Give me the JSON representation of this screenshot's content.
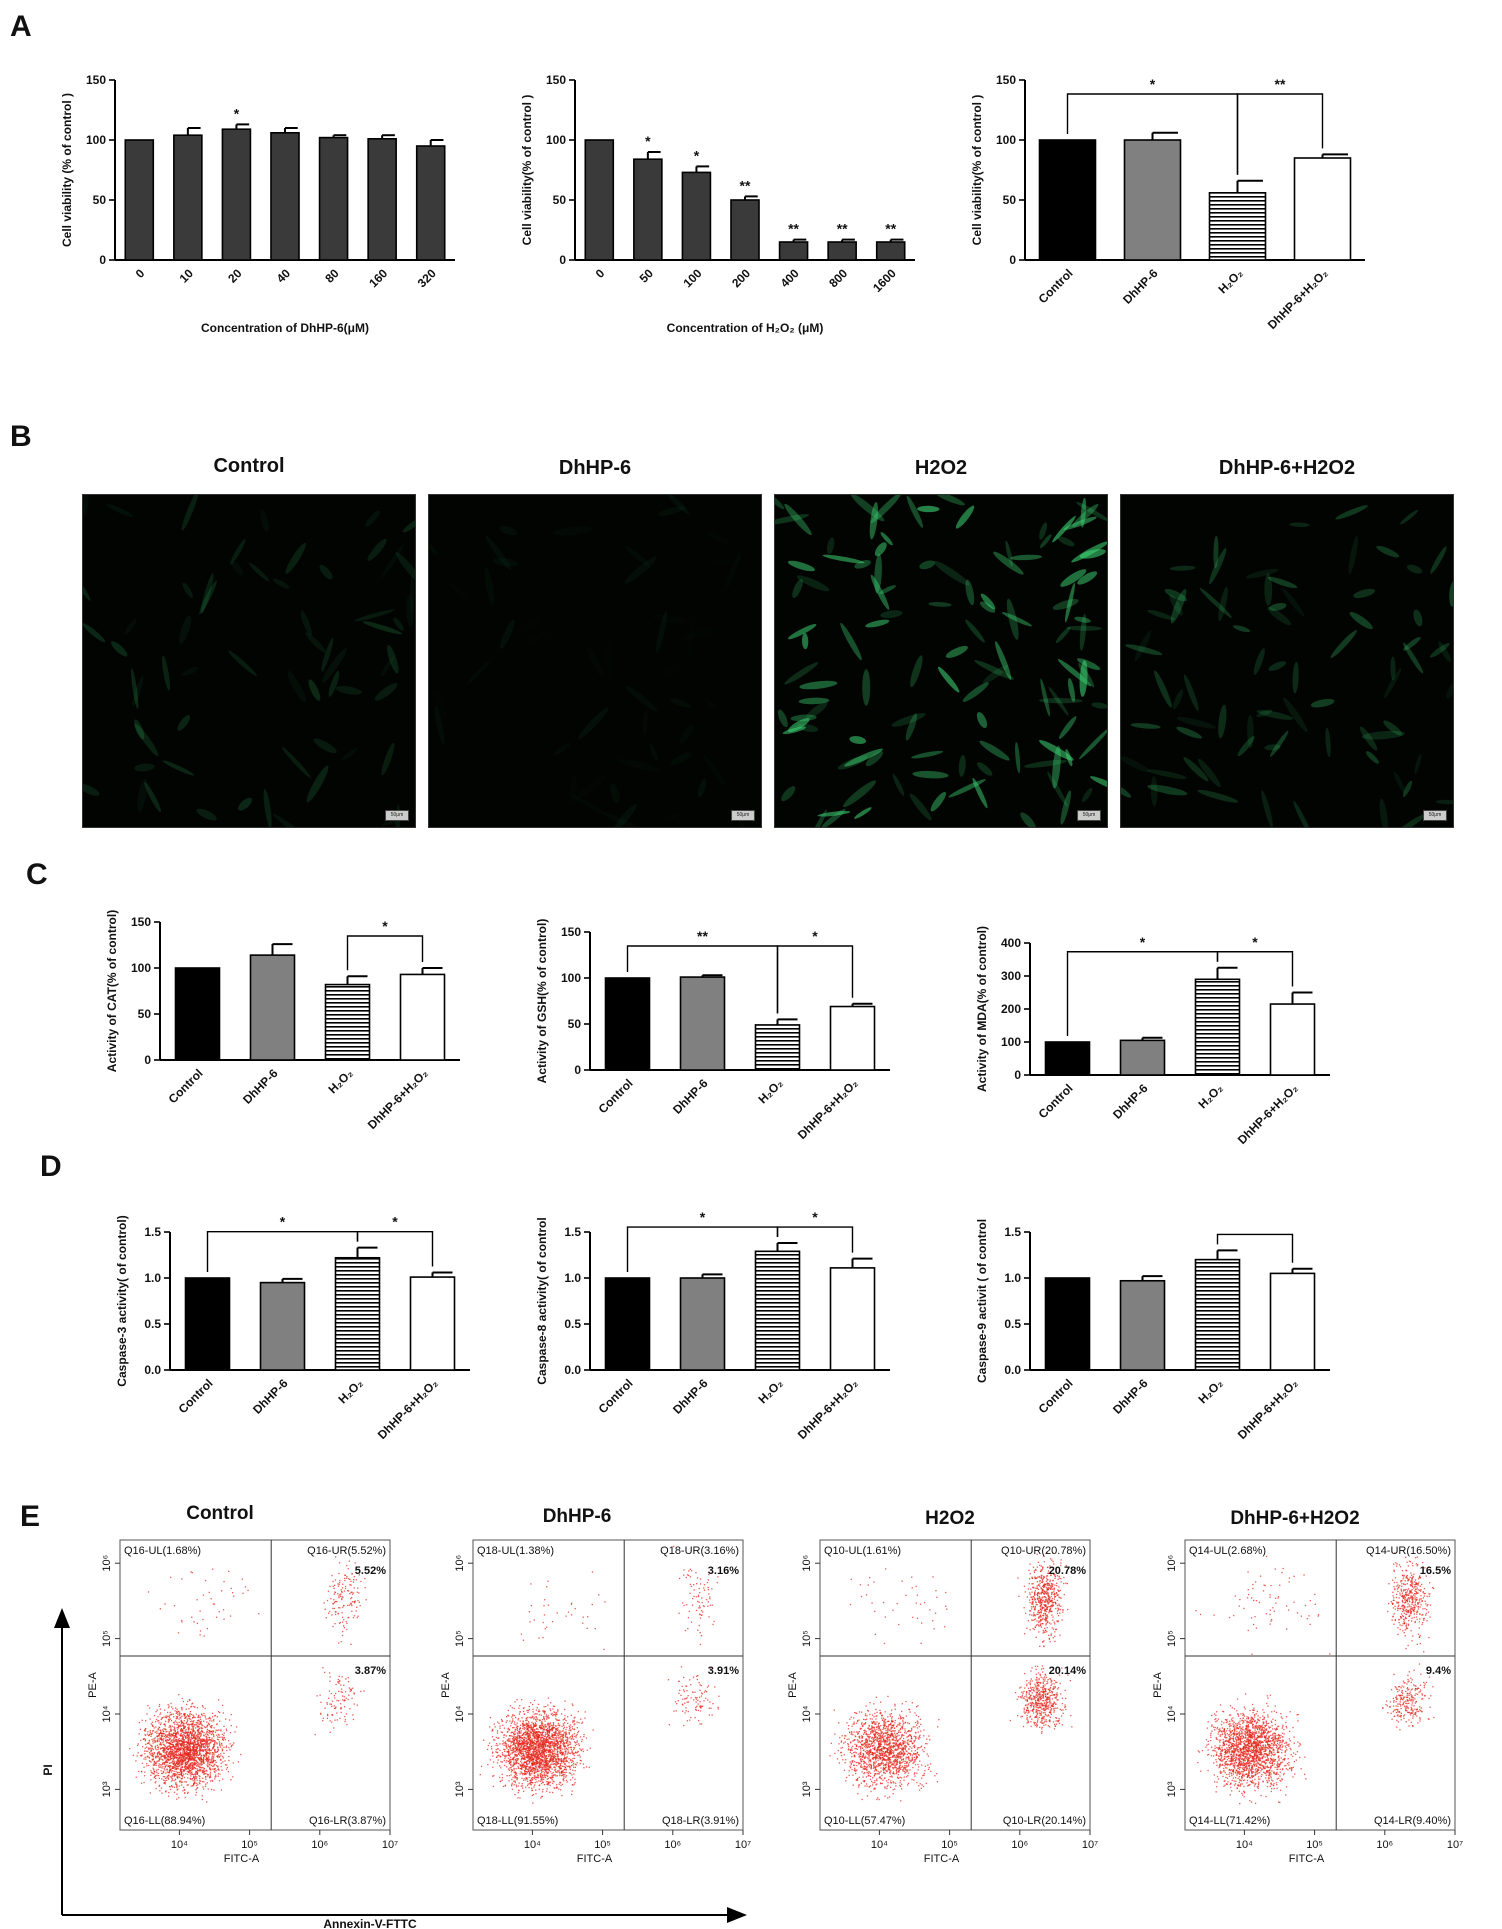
{
  "panels": {
    "A": "A",
    "B": "B",
    "C": "C",
    "D": "D",
    "E": "E"
  },
  "colors": {
    "control": "#000000",
    "dhhp6": "#808080",
    "h2o2_fill": "#ffffff",
    "h2o2_stripe": "#000000",
    "combo": "#ffffff",
    "darkbar": "#3a3a3a",
    "flow_dot": "#e4251b",
    "cell_green": "#3fd977"
  },
  "chart_data": [
    {
      "id": "A1",
      "type": "bar",
      "ylabel": "Cell viability (% of control )",
      "xlabel": "Concentration of DhHP-6(μM)",
      "categories": [
        "0",
        "10",
        "20",
        "40",
        "80",
        "160",
        "320"
      ],
      "values": [
        100,
        104,
        109,
        106,
        102,
        101,
        95
      ],
      "errors": [
        0,
        6,
        4,
        4,
        2,
        3,
        5
      ],
      "annotations": [
        "",
        "",
        "*",
        "",
        "",
        "",
        ""
      ],
      "ylim": [
        0,
        150
      ],
      "yticks": [
        "0",
        "50",
        "100",
        "150"
      ]
    },
    {
      "id": "A2",
      "type": "bar",
      "ylabel": "Cell viability(% of control )",
      "xlabel": "Concentration of H₂O₂ (μM)",
      "categories": [
        "0",
        "50",
        "100",
        "200",
        "400",
        "800",
        "1600"
      ],
      "values": [
        100,
        84,
        73,
        50,
        15,
        15,
        15
      ],
      "errors": [
        0,
        6,
        5,
        3,
        2,
        2,
        2
      ],
      "annotations": [
        "",
        "*",
        "*",
        "**",
        "**",
        "**",
        "**"
      ],
      "ylim": [
        0,
        150
      ],
      "yticks": [
        "0",
        "50",
        "100",
        "150"
      ]
    },
    {
      "id": "A3",
      "type": "bar",
      "ylabel": "Cell viability(% of control )",
      "categories": [
        "Control",
        "DhHP-6",
        "H₂O₂",
        "DhHP-6+H₂O₂"
      ],
      "values": [
        100,
        100,
        56,
        85
      ],
      "errors": [
        0,
        6,
        10,
        3
      ],
      "brackets": [
        {
          "from": 0,
          "to": 2,
          "label": "*"
        },
        {
          "from": 2,
          "to": 3,
          "label": "**"
        }
      ],
      "ylim": [
        0,
        150
      ],
      "yticks": [
        "0",
        "50",
        "100",
        "150"
      ]
    },
    {
      "id": "C1",
      "type": "bar",
      "ylabel": "Activity of CAT(% of control)",
      "categories": [
        "Control",
        "DhHP-6",
        "H₂O₂",
        "DhHP-6+H₂O₂"
      ],
      "values": [
        100,
        114,
        82,
        93
      ],
      "errors": [
        0,
        12,
        9,
        7
      ],
      "brackets": [
        {
          "from": 2,
          "to": 3,
          "label": "*"
        }
      ],
      "ylim": [
        0,
        150
      ],
      "yticks": [
        "0",
        "50",
        "100",
        "150"
      ]
    },
    {
      "id": "C2",
      "type": "bar",
      "ylabel": "Activity of GSH(% of control)",
      "categories": [
        "Control",
        "DhHP-6",
        "H₂O₂",
        "DhHP-6+H₂O₂"
      ],
      "values": [
        100,
        101,
        49,
        69
      ],
      "errors": [
        0,
        2,
        6,
        3
      ],
      "brackets": [
        {
          "from": 0,
          "to": 2,
          "label": "**"
        },
        {
          "from": 2,
          "to": 3,
          "label": "*"
        }
      ],
      "ylim": [
        0,
        150
      ],
      "yticks": [
        "0",
        "50",
        "100",
        "150"
      ]
    },
    {
      "id": "C3",
      "type": "bar",
      "ylabel": "Activity of MDA(% of control)",
      "categories": [
        "Control",
        "DhHP-6",
        "H₂O₂",
        "DhHP-6+H₂O₂"
      ],
      "values": [
        100,
        105,
        290,
        215
      ],
      "errors": [
        0,
        8,
        35,
        35
      ],
      "brackets": [
        {
          "from": 0,
          "to": 2,
          "label": "*"
        },
        {
          "from": 2,
          "to": 3,
          "label": "*"
        }
      ],
      "ylim": [
        0,
        400
      ],
      "yticks": [
        "0",
        "100",
        "200",
        "300",
        "400"
      ]
    },
    {
      "id": "D1",
      "type": "bar",
      "ylabel": "Caspase-3 activity( of control)",
      "categories": [
        "Control",
        "DhHP-6",
        "H₂O₂",
        "DhHP-6+H₂O₂"
      ],
      "values": [
        1.0,
        0.95,
        1.22,
        1.01
      ],
      "errors": [
        0,
        0.04,
        0.11,
        0.05
      ],
      "brackets": [
        {
          "from": 0,
          "to": 2,
          "label": "*"
        },
        {
          "from": 2,
          "to": 3,
          "label": "*"
        }
      ],
      "ylim": [
        0,
        1.5
      ],
      "yticks": [
        "0.0",
        "0.5",
        "1.0",
        "1.5"
      ]
    },
    {
      "id": "D2",
      "type": "bar",
      "ylabel": "Caspase-8 activity( of control",
      "categories": [
        "Control",
        "DhHP-6",
        "H₂O₂",
        "DhHP-6+H₂O₂"
      ],
      "values": [
        1.0,
        1.0,
        1.29,
        1.11
      ],
      "errors": [
        0,
        0.04,
        0.09,
        0.1
      ],
      "brackets": [
        {
          "from": 0,
          "to": 2,
          "label": "*"
        },
        {
          "from": 2,
          "to": 3,
          "label": "*"
        }
      ],
      "ylim": [
        0,
        1.5
      ],
      "yticks": [
        "0.0",
        "0.5",
        "1.0",
        "1.5"
      ]
    },
    {
      "id": "D3",
      "type": "bar",
      "ylabel": "Caspase-9 activit ( of control",
      "categories": [
        "Control",
        "DhHP-6",
        "H₂O₂",
        "DhHP-6+H₂O₂"
      ],
      "values": [
        1.0,
        0.97,
        1.2,
        1.05
      ],
      "errors": [
        0,
        0.05,
        0.1,
        0.05
      ],
      "brackets": [
        {
          "from": 2,
          "to": 3,
          "label": ""
        }
      ],
      "ylim": [
        0,
        1.5
      ],
      "yticks": [
        "0.0",
        "0.5",
        "1.0",
        "1.5"
      ]
    }
  ],
  "microscopy": {
    "titles": [
      "Control",
      "DhHP-6",
      "H2O2",
      "DhHP-6+H2O2"
    ],
    "scale_label": "50μm",
    "cell_intensity": [
      0.25,
      0.08,
      0.85,
      0.4
    ]
  },
  "flow": {
    "titles": [
      "Control",
      "DhHP-6",
      "H2O2",
      "DhHP-6+H2O2"
    ],
    "plots": [
      {
        "ul": "Q16-UL(1.68%)",
        "ur": "Q16-UR(5.52%)",
        "ll": "Q16-LL(88.94%)",
        "lr": "Q16-LR(3.87%)",
        "ur_bold": "5.52%",
        "lr_bold": "3.87%"
      },
      {
        "ul": "Q18-UL(1.38%)",
        "ur": "Q18-UR(3.16%)",
        "ll": "Q18-LL(91.55%)",
        "lr": "Q18-LR(3.91%)",
        "ur_bold": "3.16%",
        "lr_bold": "3.91%"
      },
      {
        "ul": "Q10-UL(1.61%)",
        "ur": "Q10-UR(20.78%)",
        "ll": "Q10-LL(57.47%)",
        "lr": "Q10-LR(20.14%)",
        "ur_bold": "20.78%",
        "lr_bold": "20.14%"
      },
      {
        "ul": "Q14-UL(2.68%)",
        "ur": "Q14-UR(16.50%)",
        "ll": "Q14-LL(71.42%)",
        "lr": "Q14-LR(9.40%)",
        "ur_bold": "16.5%",
        "lr_bold": "9.4%"
      }
    ],
    "x_axis_label": "FITC-A",
    "y_axis_label": "PE-A",
    "x_ticks": [
      "10⁴",
      "10⁵",
      "10⁶",
      "10⁷"
    ],
    "y_ticks": [
      "10³",
      "10⁴",
      "10⁵",
      "10⁶"
    ],
    "outer_y": "PI",
    "outer_x": "Annexin-V-FTTC",
    "quadrant_percent": [
      [
        88.94,
        1.68,
        5.52,
        3.87
      ],
      [
        91.55,
        1.38,
        3.16,
        3.91
      ],
      [
        57.47,
        1.61,
        20.78,
        20.14
      ],
      [
        71.42,
        2.68,
        16.5,
        9.4
      ]
    ]
  }
}
